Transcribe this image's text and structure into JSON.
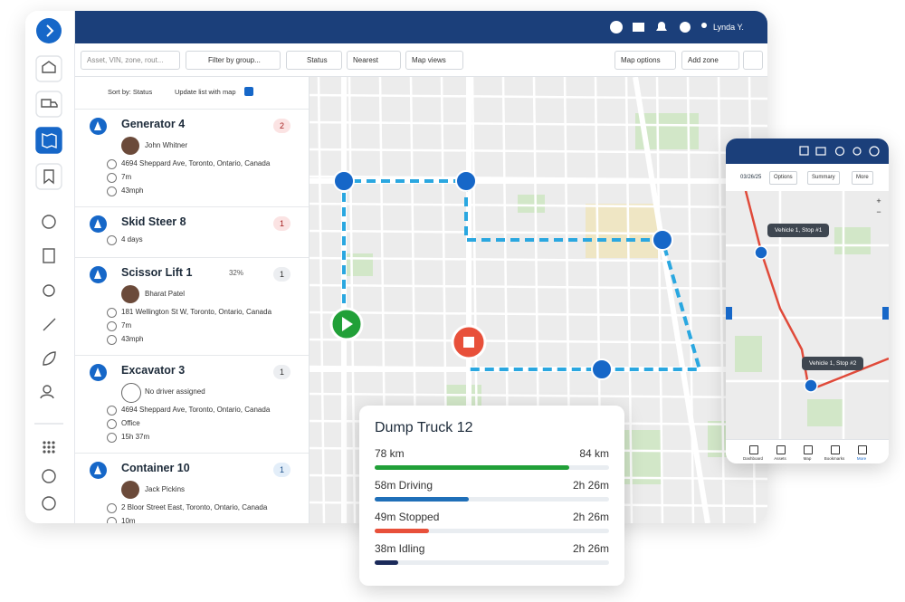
{
  "top_bar": {
    "user_name": "Lynda Y."
  },
  "toolbar": {
    "search_placeholder": "Asset, VIN, zone, rout...",
    "filter": "Filter by group...",
    "status": "Status",
    "nearest": "Nearest",
    "map_views": "Map views",
    "map_options": "Map options",
    "add_zone": "Add zone"
  },
  "list_header": {
    "sort": "Sort by: Status",
    "update": "Update list with map"
  },
  "assets": [
    {
      "name": "Generator 4",
      "alerts": "2",
      "alert_level": "high",
      "driver": "John Whitner",
      "address": "4694 Sheppard Ave, Toronto, Ontario, Canada",
      "duration": "7m",
      "speed": "43mph"
    },
    {
      "name": "Skid Steer 8",
      "alerts": "1",
      "alert_level": "high",
      "duration": "4 days"
    },
    {
      "name": "Scissor Lift 1",
      "battery": "32%",
      "alerts": "1",
      "alert_level": "low",
      "driver": "Bharat Patel",
      "address": "181 Wellington St W, Toronto, Ontario, Canada",
      "duration": "7m",
      "speed": "43mph"
    },
    {
      "name": "Excavator 3",
      "alerts": "1",
      "alert_level": "low",
      "driver": "No driver assigned",
      "address": "4694 Sheppard Ave, Toronto, Ontario, Canada",
      "location": "Office",
      "duration": "15h 37m"
    },
    {
      "name": "Container 10",
      "alerts": "1",
      "alert_level": "info",
      "driver": "Jack Pickins",
      "address": "2 Bloor Street East, Toronto, Ontario, Canada",
      "duration": "10m"
    }
  ],
  "trip_card": {
    "title": "Dump Truck 12",
    "rows": [
      {
        "left": "78 km",
        "right": "84 km"
      },
      {
        "left": "58m Driving",
        "right": "2h 26m"
      },
      {
        "left": "49m Stopped",
        "right": "2h 26m"
      },
      {
        "left": "38m Idling",
        "right": "2h 26m"
      }
    ]
  },
  "phone": {
    "date": "03/26/25",
    "options": "Options",
    "summary": "Summary",
    "more": "More",
    "zoom_in": "+",
    "zoom_out": "−",
    "stops": [
      "Vehicle 1, Stop #1",
      "Vehicle 1, Stop #2"
    ],
    "nav": [
      "Dashboard",
      "Assets",
      "Map",
      "Bookmarks",
      "More"
    ]
  }
}
